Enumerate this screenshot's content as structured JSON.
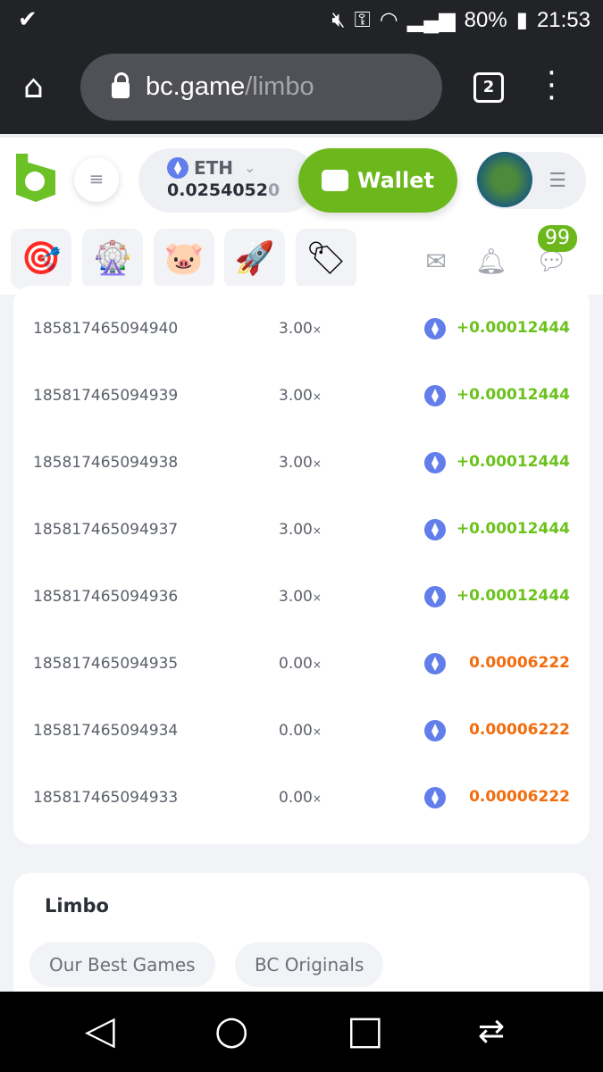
{
  "status_bar": {
    "time": "21:53",
    "battery": "80%"
  },
  "browser": {
    "url_host": "bc.game",
    "url_path": "/limbo",
    "tab_count": "2"
  },
  "header": {
    "currency": "ETH",
    "balance_main": "0.0254052",
    "balance_dim": "0",
    "wallet_label": "Wallet"
  },
  "notifications": {
    "chat_badge": "99"
  },
  "bets": [
    {
      "id": "185817465094940",
      "multiplier": "3.00",
      "payout": "+0.00012444",
      "win": true
    },
    {
      "id": "185817465094939",
      "multiplier": "3.00",
      "payout": "+0.00012444",
      "win": true
    },
    {
      "id": "185817465094938",
      "multiplier": "3.00",
      "payout": "+0.00012444",
      "win": true
    },
    {
      "id": "185817465094937",
      "multiplier": "3.00",
      "payout": "+0.00012444",
      "win": true
    },
    {
      "id": "185817465094936",
      "multiplier": "3.00",
      "payout": "+0.00012444",
      "win": true
    },
    {
      "id": "185817465094935",
      "multiplier": "0.00",
      "payout": "0.00006222",
      "win": false
    },
    {
      "id": "185817465094934",
      "multiplier": "0.00",
      "payout": "0.00006222",
      "win": false
    },
    {
      "id": "185817465094933",
      "multiplier": "0.00",
      "payout": "0.00006222",
      "win": false
    }
  ],
  "multiplier_suffix": "×",
  "colors": {
    "win": "#6cc21c",
    "loss": "#f26c0d",
    "accent": "#6cb81c"
  },
  "game_section": {
    "title": "Limbo",
    "tags": [
      "Our Best Games",
      "BC Originals"
    ]
  }
}
